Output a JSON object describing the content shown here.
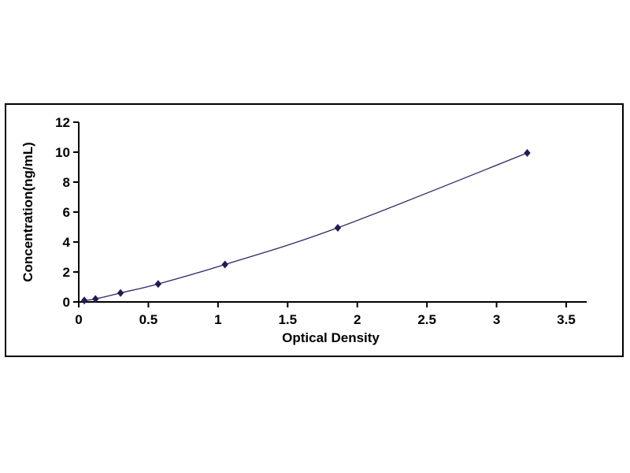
{
  "chart_data": {
    "type": "line",
    "title": "",
    "xlabel": "Optical Density",
    "ylabel": "Concentration(ng/mL)",
    "x": [
      0.04,
      0.12,
      0.3,
      0.57,
      1.05,
      1.86,
      3.22
    ],
    "y": [
      0.1,
      0.2,
      0.6,
      1.2,
      2.5,
      4.95,
      9.95
    ],
    "xlim": [
      0,
      3.5
    ],
    "ylim": [
      0,
      12
    ],
    "xticks": [
      0,
      0.5,
      1,
      1.5,
      2,
      2.5,
      3,
      3.5
    ],
    "xtick_labels": [
      "0",
      "0.5",
      "1",
      "1.5",
      "2",
      "2.5",
      "3",
      "3.5"
    ],
    "yticks": [
      0,
      2,
      4,
      6,
      8,
      10,
      12
    ],
    "ytick_labels": [
      "0",
      "2",
      "4",
      "6",
      "8",
      "10",
      "12"
    ],
    "grid": false,
    "legend": "none",
    "marker": "diamond",
    "line_color": "#2b2968",
    "marker_color": "#1f1c55",
    "axis_color": "#000000",
    "border_color": "#000000"
  }
}
